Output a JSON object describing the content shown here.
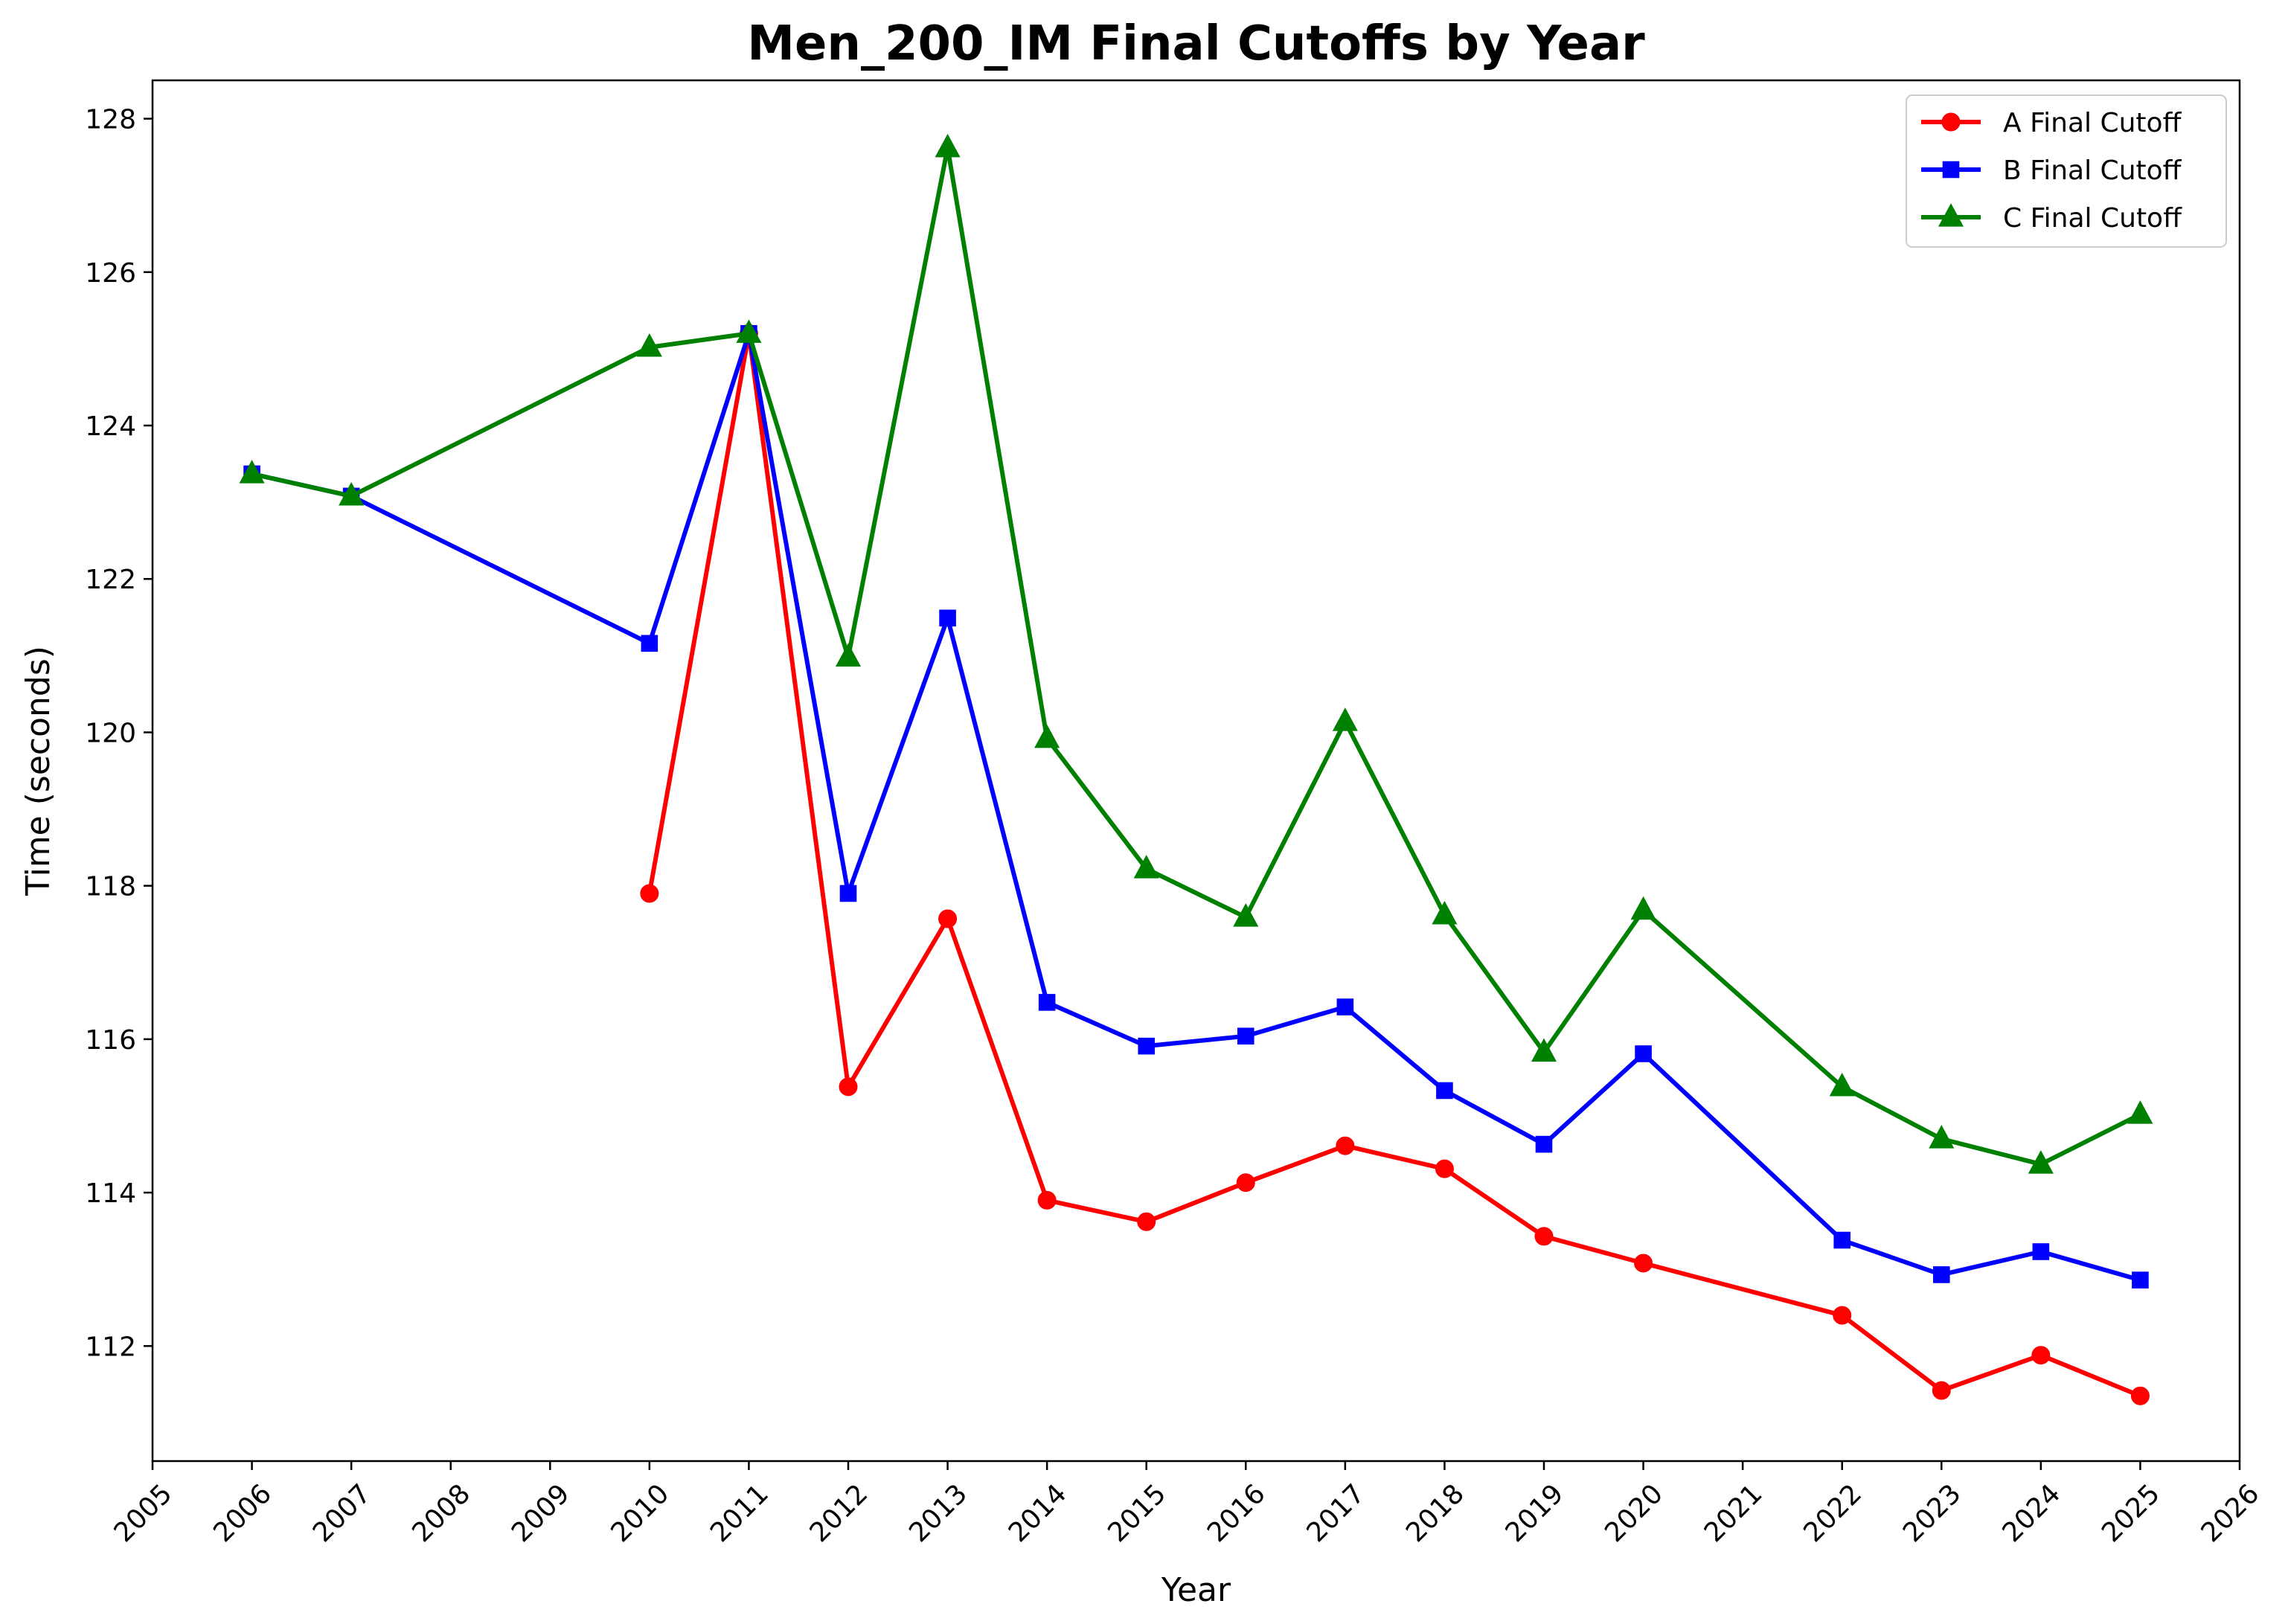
{
  "chart_data": {
    "type": "line",
    "title": "Men_200_IM Final Cutoffs by Year",
    "xlabel": "Year",
    "ylabel": "Time (seconds)",
    "xlim": [
      2005,
      2026
    ],
    "ylim": [
      110.5,
      128.5
    ],
    "xticks": [
      2005,
      2006,
      2007,
      2008,
      2009,
      2010,
      2011,
      2012,
      2013,
      2014,
      2015,
      2016,
      2017,
      2018,
      2019,
      2020,
      2021,
      2022,
      2023,
      2024,
      2025,
      2026
    ],
    "yticks": [
      112,
      114,
      116,
      118,
      120,
      122,
      124,
      126,
      128
    ],
    "grid": false,
    "legend_position": "top-right",
    "series": [
      {
        "name": "A Final Cutoff",
        "color": "#ff0000",
        "marker": "circle",
        "x": [
          2006,
          2007,
          2010,
          2011,
          2012,
          2013,
          2014,
          2015,
          2016,
          2017,
          2018,
          2019,
          2020,
          2022,
          2023,
          2024,
          2025
        ],
        "y": [
          null,
          null,
          117.9,
          125.2,
          115.38,
          117.57,
          113.9,
          113.62,
          114.13,
          114.61,
          114.31,
          113.43,
          113.08,
          112.4,
          111.42,
          111.88,
          111.35
        ]
      },
      {
        "name": "B Final Cutoff",
        "color": "#0000ff",
        "marker": "square",
        "x": [
          2006,
          2007,
          2010,
          2011,
          2012,
          2013,
          2014,
          2015,
          2016,
          2017,
          2018,
          2019,
          2020,
          2022,
          2023,
          2024,
          2025
        ],
        "y": [
          123.37,
          123.08,
          121.16,
          125.2,
          117.9,
          121.49,
          116.48,
          115.91,
          116.04,
          116.42,
          115.33,
          114.63,
          115.81,
          113.38,
          112.93,
          113.23,
          112.86
        ]
      },
      {
        "name": "C Final Cutoff",
        "color": "#008000",
        "marker": "triangle",
        "x": [
          2006,
          2007,
          2010,
          2011,
          2012,
          2013,
          2014,
          2015,
          2016,
          2017,
          2018,
          2019,
          2020,
          2022,
          2023,
          2024,
          2025
        ],
        "y": [
          123.37,
          123.08,
          125.02,
          125.2,
          120.98,
          127.62,
          119.92,
          118.22,
          117.59,
          120.14,
          117.62,
          115.83,
          117.68,
          115.38,
          114.7,
          114.37,
          115.02
        ]
      }
    ]
  }
}
